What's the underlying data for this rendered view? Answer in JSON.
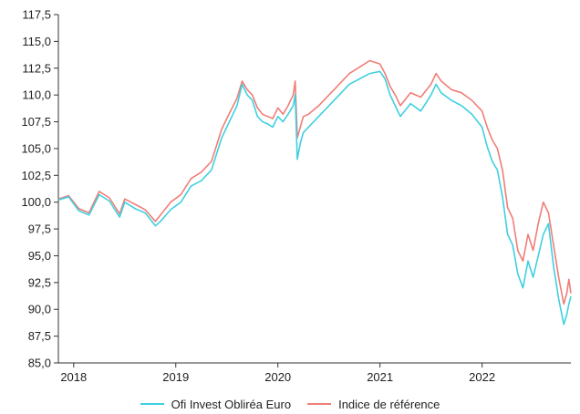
{
  "chart_data": {
    "type": "line",
    "title": "",
    "xlabel": "",
    "ylabel": "",
    "xlim": [
      2017.85,
      2022.87
    ],
    "ylim": [
      85.0,
      117.5
    ],
    "y_ticks": [
      85.0,
      87.5,
      90.0,
      92.5,
      95.0,
      97.5,
      100.0,
      102.5,
      105.0,
      107.5,
      110.0,
      112.5,
      115.0,
      117.5
    ],
    "y_tick_labels": [
      "85,0",
      "87,5",
      "90,0",
      "92,5",
      "95,0",
      "97,5",
      "100,0",
      "102,5",
      "105,0",
      "107,5",
      "110,0",
      "112,5",
      "115,0",
      "117,5"
    ],
    "x_ticks": [
      2018,
      2019,
      2020,
      2021,
      2022
    ],
    "x_tick_labels": [
      "2018",
      "2019",
      "2020",
      "2021",
      "2022"
    ],
    "grid": false,
    "legend_position": "bottom",
    "series": [
      {
        "name": "Ofi Invest Obliréa Euro",
        "color": "#3fd0e0",
        "x": [
          2017.85,
          2017.95,
          2018.05,
          2018.15,
          2018.25,
          2018.35,
          2018.45,
          2018.5,
          2018.6,
          2018.7,
          2018.8,
          2018.85,
          2018.95,
          2019.05,
          2019.15,
          2019.25,
          2019.35,
          2019.45,
          2019.5,
          2019.6,
          2019.65,
          2019.7,
          2019.75,
          2019.8,
          2019.85,
          2019.9,
          2019.95,
          2020.0,
          2020.05,
          2020.1,
          2020.15,
          2020.17,
          2020.19,
          2020.22,
          2020.25,
          2020.3,
          2020.4,
          2020.5,
          2020.6,
          2020.7,
          2020.8,
          2020.9,
          2021.0,
          2021.05,
          2021.1,
          2021.15,
          2021.2,
          2021.3,
          2021.4,
          2021.5,
          2021.55,
          2021.6,
          2021.7,
          2021.8,
          2021.9,
          2022.0,
          2022.05,
          2022.1,
          2022.15,
          2022.2,
          2022.25,
          2022.3,
          2022.35,
          2022.4,
          2022.45,
          2022.5,
          2022.55,
          2022.6,
          2022.65,
          2022.7,
          2022.75,
          2022.8,
          2022.83,
          2022.85,
          2022.87
        ],
        "y": [
          100.2,
          100.5,
          99.2,
          98.8,
          100.7,
          100.1,
          98.6,
          100.0,
          99.4,
          99.0,
          97.8,
          98.2,
          99.3,
          100.0,
          101.5,
          102.0,
          103.0,
          106.0,
          107.0,
          109.0,
          111.0,
          110.0,
          109.5,
          108.0,
          107.5,
          107.3,
          107.0,
          108.0,
          107.5,
          108.2,
          109.0,
          110.0,
          104.0,
          105.5,
          106.5,
          107.0,
          108.0,
          109.0,
          110.0,
          111.0,
          111.5,
          112.0,
          112.2,
          111.5,
          110.0,
          109.0,
          108.0,
          109.2,
          108.5,
          110.0,
          111.0,
          110.2,
          109.5,
          109.0,
          108.2,
          107.0,
          105.2,
          103.8,
          103.0,
          100.5,
          97.0,
          96.0,
          93.3,
          92.0,
          94.5,
          93.0,
          95.0,
          97.0,
          98.0,
          94.0,
          91.0,
          88.6,
          89.5,
          90.5,
          91.2
        ]
      },
      {
        "name": "Indice de référence",
        "color": "#ef7e78",
        "x": [
          2017.85,
          2017.95,
          2018.05,
          2018.15,
          2018.25,
          2018.35,
          2018.45,
          2018.5,
          2018.6,
          2018.7,
          2018.8,
          2018.85,
          2018.95,
          2019.05,
          2019.15,
          2019.25,
          2019.35,
          2019.45,
          2019.5,
          2019.6,
          2019.65,
          2019.7,
          2019.75,
          2019.8,
          2019.85,
          2019.9,
          2019.95,
          2020.0,
          2020.05,
          2020.1,
          2020.15,
          2020.17,
          2020.19,
          2020.22,
          2020.25,
          2020.3,
          2020.4,
          2020.5,
          2020.6,
          2020.7,
          2020.8,
          2020.9,
          2021.0,
          2021.05,
          2021.1,
          2021.15,
          2021.2,
          2021.3,
          2021.4,
          2021.5,
          2021.55,
          2021.6,
          2021.7,
          2021.8,
          2021.9,
          2022.0,
          2022.05,
          2022.1,
          2022.15,
          2022.2,
          2022.25,
          2022.3,
          2022.35,
          2022.4,
          2022.45,
          2022.5,
          2022.55,
          2022.6,
          2022.65,
          2022.7,
          2022.75,
          2022.8,
          2022.83,
          2022.85,
          2022.87
        ],
        "y": [
          100.3,
          100.6,
          99.4,
          99.0,
          101.0,
          100.4,
          98.9,
          100.3,
          99.8,
          99.3,
          98.2,
          98.8,
          100.0,
          100.7,
          102.2,
          102.8,
          103.8,
          106.8,
          107.8,
          109.7,
          111.3,
          110.5,
          110.0,
          108.8,
          108.2,
          108.0,
          107.8,
          108.8,
          108.2,
          109.0,
          110.0,
          111.3,
          106.0,
          107.0,
          108.0,
          108.2,
          109.0,
          110.0,
          111.0,
          112.0,
          112.6,
          113.2,
          112.9,
          112.0,
          110.8,
          110.0,
          109.0,
          110.2,
          109.8,
          111.0,
          112.0,
          111.3,
          110.5,
          110.2,
          109.5,
          108.5,
          107.0,
          105.8,
          105.0,
          103.0,
          99.5,
          98.5,
          95.5,
          94.5,
          97.0,
          95.5,
          98.0,
          100.0,
          99.0,
          96.0,
          93.0,
          90.5,
          91.5,
          92.8,
          91.5
        ]
      }
    ]
  }
}
